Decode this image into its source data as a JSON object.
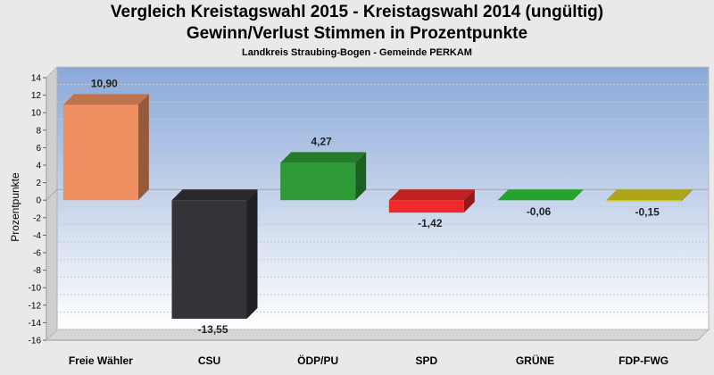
{
  "chart_data": {
    "type": "bar",
    "title": "Vergleich Kreistagswahl 2015 - Kreistagswahl 2014 (ungültig)\nGewinn/Verlust Stimmen in Prozentpunkte",
    "title_lines": [
      "Vergleich Kreistagswahl 2015 - Kreistagswahl 2014 (ungültig)",
      "Gewinn/Verlust Stimmen in Prozentpunkte"
    ],
    "subtitle": "Landkreis Straubing-Bogen - Gemeinde PERKAM",
    "xlabel": "",
    "ylabel": "Prozentpunkte",
    "ylim": [
      -16,
      14
    ],
    "yticks": [
      14,
      12,
      10,
      8,
      6,
      4,
      2,
      0,
      -2,
      -4,
      -6,
      -8,
      -10,
      -12,
      -14,
      -16
    ],
    "grid": true,
    "legend": "none",
    "categories": [
      "Freie Wähler",
      "CSU",
      "ÖDP/PU",
      "SPD",
      "GRÜNE",
      "FDP-FWG"
    ],
    "values": [
      10.9,
      -13.55,
      4.27,
      -1.42,
      -0.06,
      -0.15
    ],
    "data_labels": [
      "10,90",
      "-13,55",
      "4,27",
      "-1,42",
      "-0,06",
      "-0,15"
    ],
    "colors": [
      "#f09060",
      "#333338",
      "#2e9a35",
      "#ee2a2a",
      "#2ecc3a",
      "#d8d020"
    ],
    "background_top": "#8aa8d8",
    "background_bottom": "#ffffff"
  }
}
